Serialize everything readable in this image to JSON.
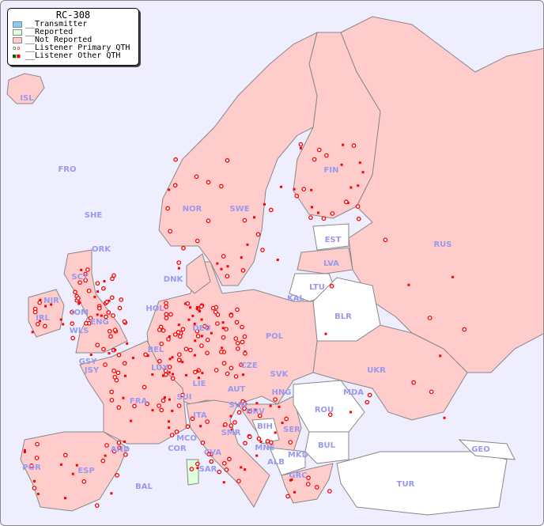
{
  "legend": {
    "title": "RC-308",
    "items": [
      {
        "label": "__Transmitter",
        "color": "#88ccff"
      },
      {
        "label": "__Reported",
        "color": "#ddffdd"
      },
      {
        "label": "__Not Reported",
        "color": "#ffcccc"
      },
      {
        "label": "__Listener Primary QTH",
        "color": "#ff0000"
      },
      {
        "label": "__Listener Other QTH",
        "color": "#ff0000"
      }
    ]
  },
  "colors": {
    "sea": "#eeeeff",
    "not_reported": "#ffcccc",
    "reported": "#ddffdd",
    "no_data": "#ffffff",
    "label": "#9999ee",
    "marker": "#ff0000"
  },
  "country_labels": [
    "ISL",
    "FRO",
    "SHE",
    "ORK",
    "NOR",
    "SWE",
    "FIN",
    "EST",
    "RUS",
    "LVA",
    "LTU",
    "DNK",
    "KAL",
    "HOL",
    "BLR",
    "SCT",
    "NIR",
    "IRL",
    "IOM",
    "WLS",
    "ENG",
    "DEU",
    "POL",
    "BEL",
    "LUX",
    "CZE",
    "UKR",
    "SVK",
    "GSY",
    "JSY",
    "FRA",
    "SUI",
    "LIE",
    "AUT",
    "HNG",
    "MDA",
    "SVN",
    "HRV",
    "ROU",
    "ITA",
    "BIH",
    "SER",
    "MCO",
    "SMR",
    "BUL",
    "GEO",
    "AND",
    "COR",
    "CVA",
    "MNE",
    "MKD",
    "ALB",
    "POR",
    "ESP",
    "SAR",
    "GRC",
    "BAL",
    "TUR"
  ]
}
